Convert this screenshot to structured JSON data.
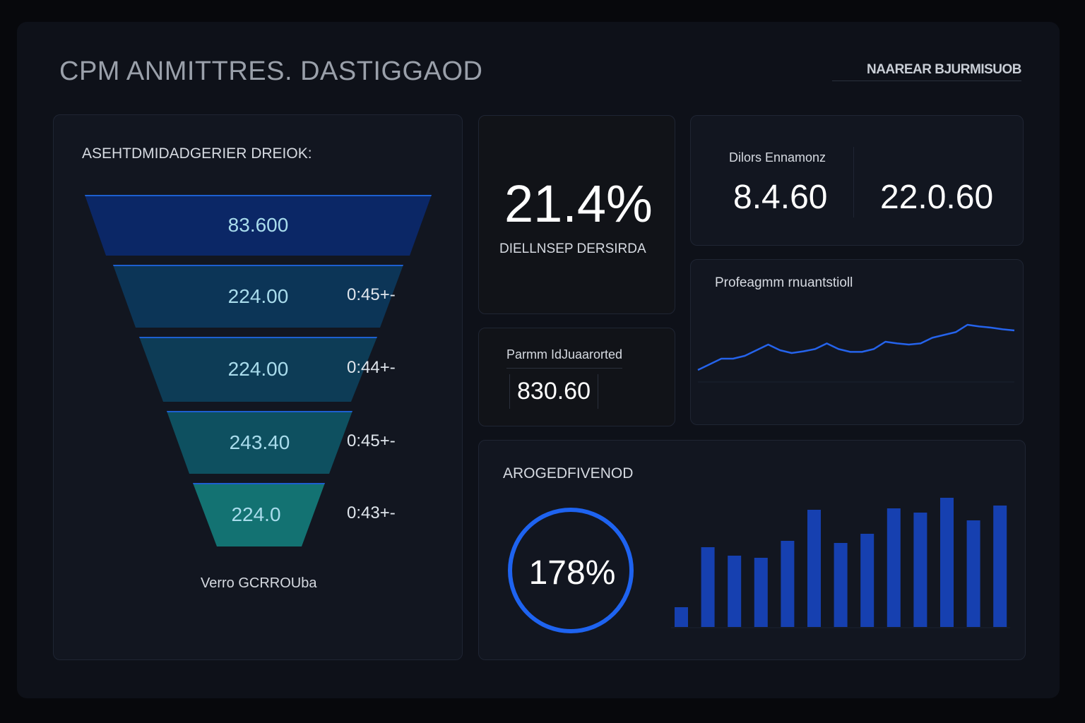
{
  "header": {
    "title": "CPM ANMITTRES. DASTIGGAOD",
    "top_right_label": "NAAREAR BJURMISUOB"
  },
  "funnel": {
    "title": "ASEHTDMIDADGERIER DREIOK:",
    "footer": "Verro GCRROUba",
    "colors": [
      "#0b2766",
      "#0c3557",
      "#0d3c56",
      "#0e5060",
      "#137272"
    ],
    "stages": [
      {
        "value": "83.600",
        "rate": ""
      },
      {
        "value": "224.00",
        "rate": "0:45+-"
      },
      {
        "value": "224.00",
        "rate": "0:44+-"
      },
      {
        "value": "243.40",
        "rate": "0:45+-"
      },
      {
        "value": "224.0",
        "rate": "0:43+-"
      }
    ]
  },
  "kpi_main": {
    "value": "21.4%",
    "label": "DIELLNSEP DERSIRDA"
  },
  "kpi_pair": {
    "label_left": "Dilors Ennamonz",
    "label_right": "",
    "value_left": "8.4.60",
    "value_right": "22.0.60"
  },
  "kpi_small": {
    "label": "Parmm IdJuaarorted",
    "value": "830.60"
  },
  "line_panel": {
    "title": "Profeagmm rnuantstioll"
  },
  "bottom_panel": {
    "title": "AROGEDFIVENOD",
    "gauge_value": "178%",
    "gauge_color": "#1e63f0"
  },
  "chart_data": [
    {
      "type": "line",
      "title": "Profeagmm rnuantstioll",
      "color": "#2563eb",
      "grid": false,
      "values": [
        20,
        30,
        40,
        40,
        45,
        55,
        65,
        55,
        50,
        53,
        57,
        67,
        57,
        52,
        52,
        57,
        70,
        67,
        65,
        67,
        77,
        82,
        87,
        100,
        97,
        95,
        92,
        90
      ]
    },
    {
      "type": "bar",
      "title": "AROGEDFIVENOD",
      "color": "#1640b0",
      "values": [
        28,
        113,
        101,
        98,
        122,
        166,
        119,
        132,
        168,
        162,
        183,
        151,
        172
      ]
    }
  ]
}
